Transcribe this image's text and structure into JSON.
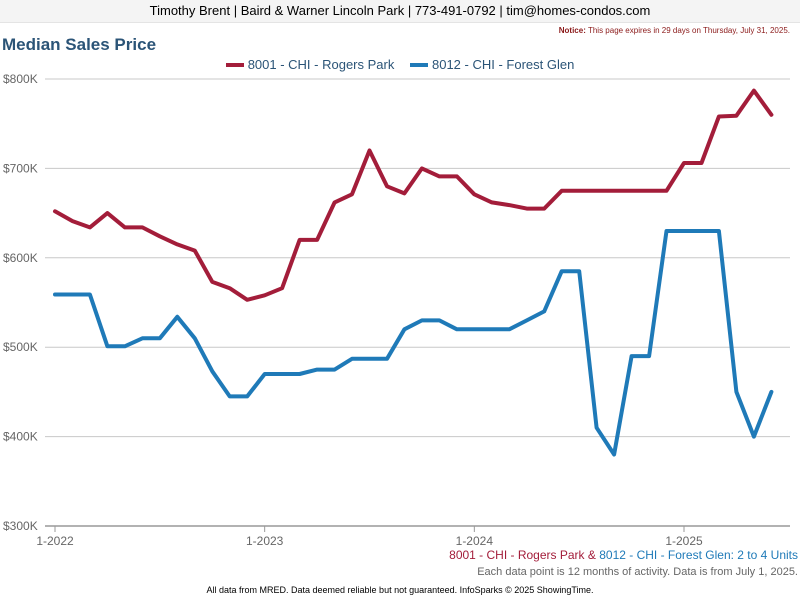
{
  "header": {
    "text": "Timothy Brent | Baird & Warner Lincoln Park | 773-491-0792 | tim@homes-condos.com"
  },
  "notice": {
    "label": "Notice:",
    "text": "This page expires in 29 days on Thursday, July 31, 2025."
  },
  "colors": {
    "series1": "#a31d3a",
    "series2": "#1f7ab8",
    "title": "#2b5477",
    "grid": "#c8c8c8"
  },
  "chart_data": {
    "type": "line",
    "title": "Median Sales Price",
    "ylim": [
      300000,
      800000
    ],
    "yticks": [
      {
        "value": 300000,
        "label": "$300K"
      },
      {
        "value": 400000,
        "label": "$400K"
      },
      {
        "value": 500000,
        "label": "$500K"
      },
      {
        "value": 600000,
        "label": "$600K"
      },
      {
        "value": 700000,
        "label": "$700K"
      },
      {
        "value": 800000,
        "label": "$800K"
      }
    ],
    "xticks": [
      {
        "index": 0,
        "label": "1-2022"
      },
      {
        "index": 12,
        "label": "1-2023"
      },
      {
        "index": 24,
        "label": "1-2024"
      },
      {
        "index": 36,
        "label": "1-2025"
      }
    ],
    "x": [
      "1-2022",
      "2-2022",
      "3-2022",
      "4-2022",
      "5-2022",
      "6-2022",
      "7-2022",
      "8-2022",
      "9-2022",
      "10-2022",
      "11-2022",
      "12-2022",
      "1-2023",
      "2-2023",
      "3-2023",
      "4-2023",
      "5-2023",
      "6-2023",
      "7-2023",
      "8-2023",
      "9-2023",
      "10-2023",
      "11-2023",
      "12-2023",
      "1-2024",
      "2-2024",
      "3-2024",
      "4-2024",
      "5-2024",
      "6-2024",
      "7-2024",
      "8-2024",
      "9-2024",
      "10-2024",
      "11-2024",
      "12-2024",
      "1-2025",
      "2-2025",
      "3-2025",
      "4-2025",
      "5-2025",
      "6-2025"
    ],
    "grid": true,
    "legend_position": "top",
    "series": [
      {
        "name": "8001 - CHI - Rogers Park",
        "values": [
          652000,
          641000,
          634000,
          650000,
          634000,
          634000,
          624000,
          615000,
          608000,
          573000,
          566000,
          553000,
          558000,
          566000,
          620000,
          620000,
          662000,
          671000,
          720000,
          680000,
          672000,
          700000,
          691000,
          691000,
          671000,
          662000,
          659000,
          655000,
          655000,
          675000,
          675000,
          675000,
          675000,
          675000,
          675000,
          675000,
          706000,
          706000,
          758000,
          759000,
          787000,
          760000
        ]
      },
      {
        "name": "8012 - CHI - Forest Glen",
        "values": [
          559000,
          559000,
          559000,
          501000,
          501000,
          510000,
          510000,
          534000,
          510000,
          473000,
          445000,
          445000,
          470000,
          470000,
          470000,
          475000,
          475000,
          487000,
          487000,
          487000,
          520000,
          530000,
          530000,
          520000,
          520000,
          520000,
          520000,
          530000,
          540000,
          585000,
          585000,
          410000,
          380000,
          490000,
          490000,
          630000,
          630000,
          630000,
          630000,
          450000,
          400000,
          450000
        ]
      }
    ]
  },
  "bottom_legend": {
    "series1": "8001 - CHI - Rogers Park",
    "amp": "&",
    "series2": "8012 - CHI - Forest Glen:",
    "suffix": "2 to 4 Units"
  },
  "activity_note": "Each data point is 12 months of activity. Data is from July 1, 2025.",
  "footer": "All data from MRED. Data deemed reliable but not guaranteed. InfoSparks © 2025 ShowingTime."
}
